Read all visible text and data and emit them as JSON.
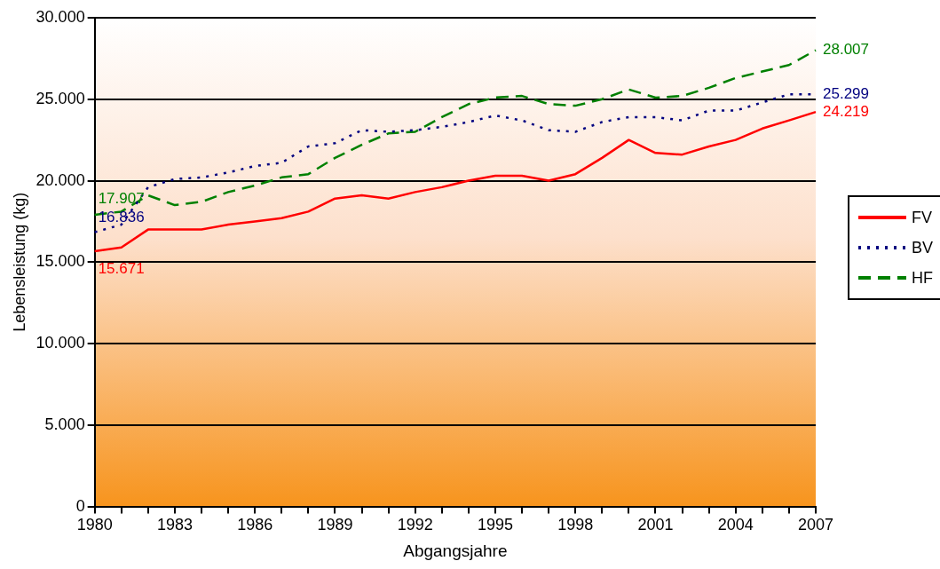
{
  "chart_data": {
    "type": "line",
    "xlabel": "Abgangsjahre",
    "ylabel": "Lebensleistung (kg)",
    "categories": [
      "1980",
      null,
      null,
      "1983",
      null,
      null,
      "1986",
      null,
      null,
      "1989",
      null,
      null,
      "1992",
      null,
      null,
      "1995",
      null,
      null,
      "1998",
      null,
      null,
      "2001",
      null,
      null,
      "2004",
      null,
      null,
      "2007"
    ],
    "series": [
      {
        "name": "FV",
        "color": "#ff0000",
        "line_style": "solid",
        "values": [
          15671,
          15900,
          17000,
          17000,
          17000,
          17300,
          17500,
          17700,
          18100,
          18900,
          19100,
          18900,
          19300,
          19600,
          20000,
          20300,
          20300,
          20000,
          20400,
          21400,
          22500,
          21700,
          21600,
          22100,
          22500,
          23200,
          23700,
          24219
        ],
        "value_labels": [
          "15.671",
          null,
          null,
          null,
          null,
          null,
          null,
          null,
          null,
          null,
          null,
          null,
          null,
          null,
          null,
          null,
          null,
          null,
          null,
          null,
          null,
          null,
          null,
          null,
          null,
          null,
          null,
          "24.219"
        ]
      },
      {
        "name": "BV",
        "color": "#000080",
        "line_style": "dotted",
        "values": [
          16836,
          17300,
          19600,
          20100,
          20200,
          20500,
          20900,
          21100,
          22100,
          22300,
          23100,
          23000,
          23100,
          23300,
          23600,
          24000,
          23700,
          23100,
          23000,
          23600,
          23900,
          23900,
          23700,
          24300,
          24300,
          24800,
          25300,
          25299
        ],
        "value_labels": [
          "16.836",
          null,
          null,
          null,
          null,
          null,
          null,
          null,
          null,
          null,
          null,
          null,
          null,
          null,
          null,
          null,
          null,
          null,
          null,
          null,
          null,
          null,
          null,
          null,
          null,
          null,
          null,
          "25.299"
        ]
      },
      {
        "name": "HF",
        "color": "#008000",
        "line_style": "dashed",
        "values": [
          17907,
          18100,
          19100,
          18500,
          18700,
          19300,
          19700,
          20200,
          20400,
          21400,
          22200,
          22900,
          23000,
          23900,
          24700,
          25100,
          25200,
          24700,
          24600,
          25000,
          25600,
          25100,
          25200,
          25700,
          26300,
          26700,
          27100,
          28007
        ],
        "value_labels": [
          "17.907",
          null,
          null,
          null,
          null,
          null,
          null,
          null,
          null,
          null,
          null,
          null,
          null,
          null,
          null,
          null,
          null,
          null,
          null,
          null,
          null,
          null,
          null,
          null,
          null,
          null,
          null,
          "28.007"
        ]
      }
    ],
    "ylim": [
      0,
      30000
    ],
    "yticks": [
      {
        "value": 0,
        "label": "0"
      },
      {
        "value": 5000,
        "label": "5.000"
      },
      {
        "value": 10000,
        "label": "10.000"
      },
      {
        "value": 15000,
        "label": "15.000"
      },
      {
        "value": 20000,
        "label": "20.000"
      },
      {
        "value": 25000,
        "label": "25.000"
      },
      {
        "value": 30000,
        "label": "30.000"
      }
    ],
    "grid": "y",
    "legend": "right"
  }
}
